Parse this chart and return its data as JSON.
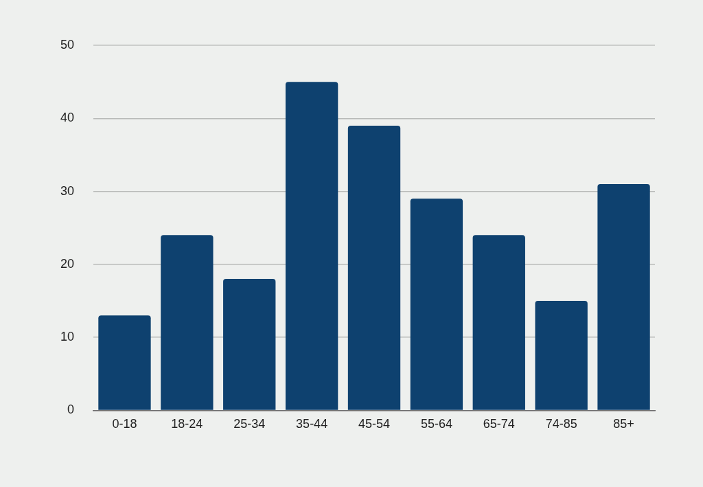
{
  "chart_data": {
    "type": "bar",
    "categories": [
      "0-18",
      "18-24",
      "25-34",
      "35-44",
      "45-54",
      "55-64",
      "65-74",
      "74-85",
      "85+"
    ],
    "values": [
      13,
      24,
      18,
      45,
      39,
      29,
      24,
      15,
      31
    ],
    "color": "#0e416f",
    "ylim": [
      0,
      50
    ],
    "yticks": [
      0,
      10,
      20,
      30,
      40,
      50
    ],
    "grid": "y"
  }
}
